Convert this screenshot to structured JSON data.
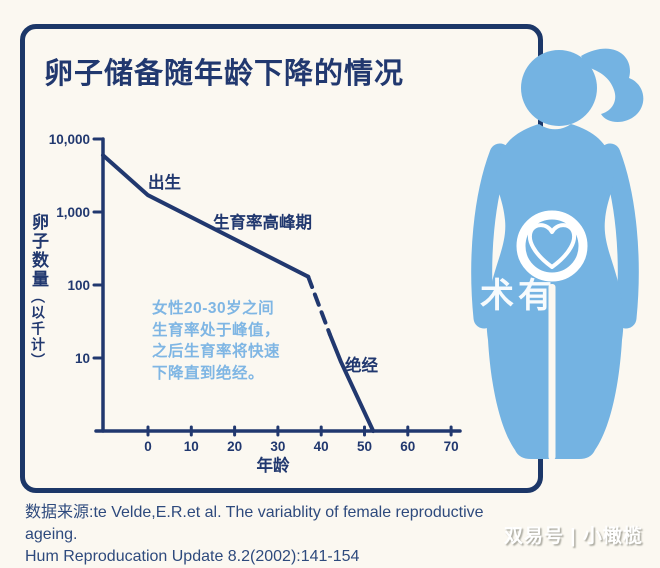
{
  "page": {
    "source_line1": "数据来源:te Velde,E.R.et al. The variablity of female reproductive ageing.",
    "source_line2": "Hum Reproducation Update 8.2(2002):141-154",
    "watermark_center": "术有",
    "watermark_bottom": "双易号 | 小橄榄"
  },
  "colors": {
    "navy": "#21386f",
    "frame_navy": "#1c3768",
    "figure_blue": "#74b3e2",
    "note_blue": "#7fb6e4",
    "source_text": "#2e4a7d",
    "background": "#fbf8f1"
  },
  "chart_data": {
    "type": "line",
    "title": "卵子储备随年龄下降的情况",
    "xlabel": "年龄",
    "ylabel": "卵子数量（以千计）",
    "ylabel_main": "卵子数量",
    "ylabel_sub": "（以千计）",
    "x_ticks": [
      0,
      10,
      20,
      30,
      40,
      50,
      60,
      70
    ],
    "y_ticks": [
      "10,000",
      "1,000",
      "100",
      "10"
    ],
    "y_scale": "log",
    "xlim": [
      -10.4,
      72
    ],
    "ylim": [
      1,
      10000
    ],
    "grid": false,
    "segments": [
      {
        "style": "solid",
        "points": [
          [
            -10.4,
            6000
          ],
          [
            0,
            1700
          ],
          [
            37,
            130
          ]
        ]
      },
      {
        "style": "dashed",
        "points": [
          [
            37,
            130
          ],
          [
            42,
            21
          ]
        ]
      },
      {
        "style": "solid",
        "points": [
          [
            42,
            21
          ],
          [
            44.5,
            9
          ],
          [
            52,
            1
          ]
        ]
      }
    ],
    "annotations": [
      {
        "label": "出生",
        "age": 1,
        "count": 3500
      },
      {
        "label": "生育率高峰期",
        "age": 15,
        "count": 900
      },
      {
        "label": "绝经",
        "age": 46,
        "count": 12
      }
    ],
    "note": "女性20-30岁之间\n生育率处于峰值，\n之后生育率将快速\n下降直到绝经。"
  }
}
